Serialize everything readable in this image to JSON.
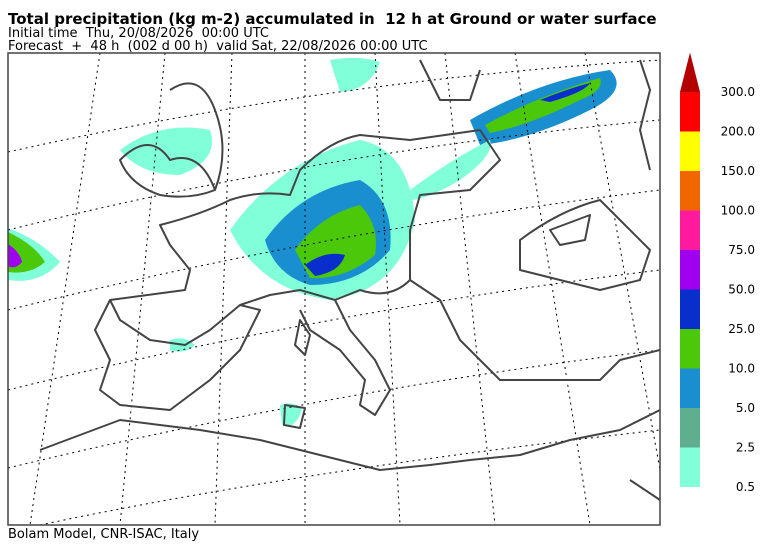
{
  "header": {
    "title": "Total precipitation (kg m-2) accumulated in  12 h at Ground or water surface",
    "initial_time": "Initial time  Thu, 20/08/2026  00:00 UTC",
    "forecast": "Forecast  +  48 h  (002 d 00 h)  valid Sat, 22/08/2026 00:00 UTC"
  },
  "colorbar": {
    "levels": [
      {
        "label": "0.5",
        "color": "#80ffd9"
      },
      {
        "label": "2.5",
        "color": "#5fae8f"
      },
      {
        "label": "5.0",
        "color": "#1a8fcf"
      },
      {
        "label": "10.0",
        "color": "#4cc80a"
      },
      {
        "label": "25.0",
        "color": "#0a2ecc"
      },
      {
        "label": "50.0",
        "color": "#a000f0"
      },
      {
        "label": "75.0",
        "color": "#ff1a9e"
      },
      {
        "label": "100.0",
        "color": "#f26600"
      },
      {
        "label": "150.0",
        "color": "#ffff00"
      },
      {
        "label": "200.0",
        "color": "#ff0000"
      },
      {
        "label": "300.0",
        "color": "#b30000"
      }
    ]
  },
  "footer": "Bolam Model, CNR-ISAC, Italy"
}
